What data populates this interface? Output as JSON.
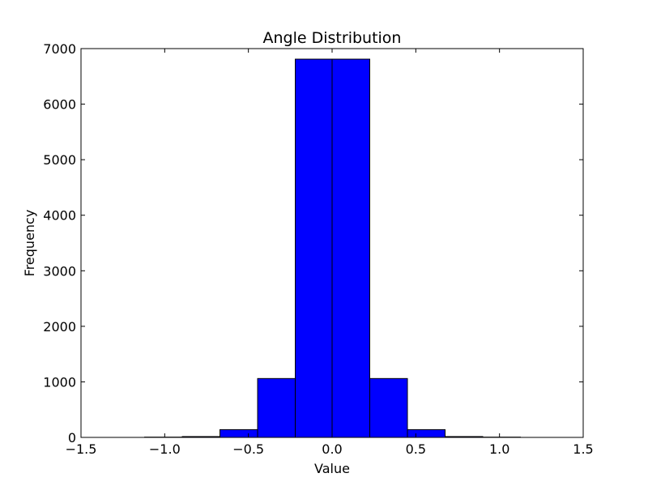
{
  "chart_data": {
    "type": "bar",
    "title": "Angle Distribution",
    "xlabel": "Value",
    "ylabel": "Frequency",
    "xlim": [
      -1.5,
      1.5
    ],
    "ylim": [
      0,
      7000
    ],
    "xticks": [
      -1.5,
      -1.0,
      -0.5,
      0.0,
      0.5,
      1.0,
      1.5
    ],
    "xtick_labels": [
      "−1.5",
      "−1.0",
      "−0.5",
      "0.0",
      "0.5",
      "1.0",
      "1.5"
    ],
    "yticks": [
      0,
      1000,
      2000,
      3000,
      4000,
      5000,
      6000,
      7000
    ],
    "ytick_labels": [
      "0",
      "1000",
      "2000",
      "3000",
      "4000",
      "5000",
      "6000",
      "7000"
    ],
    "bin_edges": [
      -1.12,
      -0.895,
      -0.67,
      -0.445,
      -0.22,
      0.0,
      0.225,
      0.45,
      0.675,
      0.9,
      1.125
    ],
    "values": [
      5,
      15,
      140,
      1060,
      6810,
      6810,
      1060,
      140,
      15,
      5
    ],
    "bar_color": "#0000ff",
    "edge_color": "#000000",
    "grid": false
  }
}
